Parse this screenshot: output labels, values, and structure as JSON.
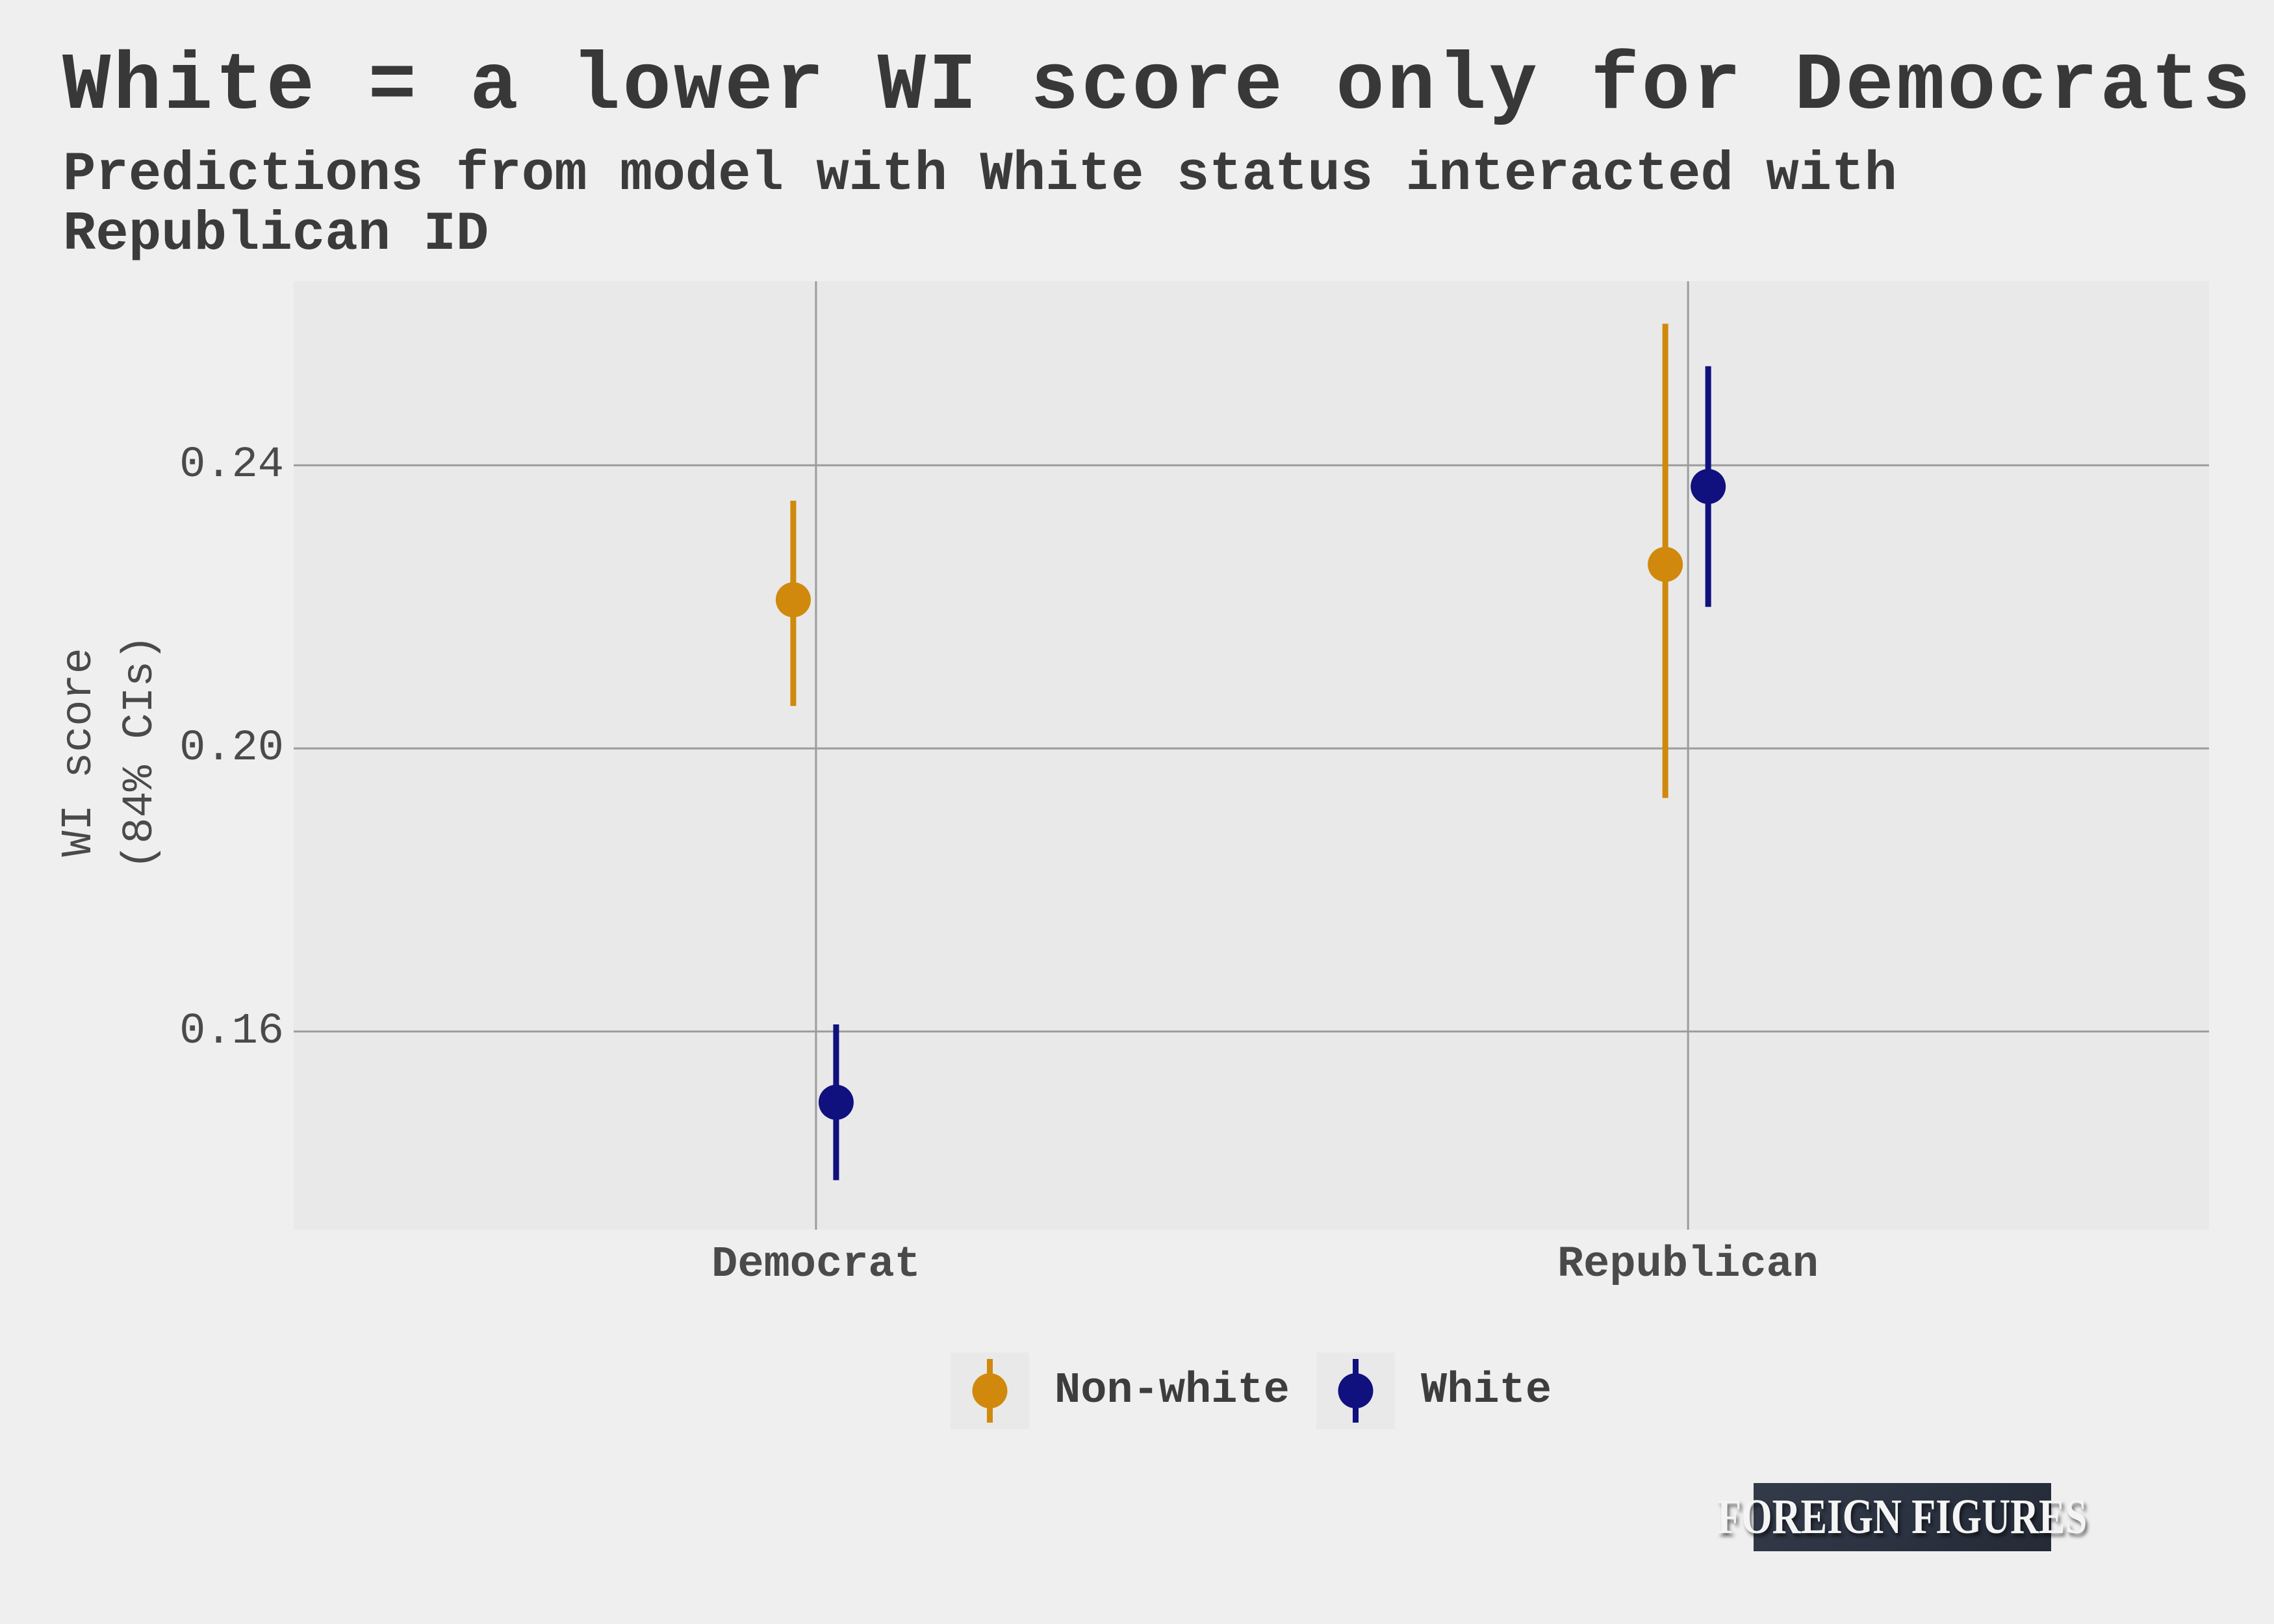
{
  "header": {
    "title": "White = a lower WI score only for Democrats",
    "subtitle_line1": "Predictions from model with White status interacted with",
    "subtitle_line2": "Republican ID"
  },
  "chart_data": {
    "type": "pointrange",
    "title": "White = a lower WI score only for Democrats",
    "subtitle": "Predictions from model with White status interacted with Republican ID",
    "subtitle_line1": "Predictions from model with White status interacted with",
    "subtitle_line2": "Republican ID",
    "xlabel": "",
    "ylabel": "WI score (84% CIs)",
    "ylabel_line1": "WI score",
    "ylabel_line2": "(84% CIs)",
    "ci_level": "84%",
    "categories": [
      "Democrat",
      "Republican"
    ],
    "y_ticks": [
      "0.24",
      "0.20",
      "0.16"
    ],
    "y_tick_values": [
      0.24,
      0.2,
      0.16
    ],
    "ylim": [
      0.132,
      0.266
    ],
    "grid": true,
    "legend_position": "bottom",
    "series": [
      {
        "name": "Non-white",
        "color": "#d0890c",
        "points": [
          {
            "category": "Democrat",
            "estimate": 0.221,
            "ci_low": 0.206,
            "ci_high": 0.235
          },
          {
            "category": "Republican",
            "estimate": 0.226,
            "ci_low": 0.193,
            "ci_high": 0.26
          }
        ]
      },
      {
        "name": "White",
        "color": "#10107e",
        "points": [
          {
            "category": "Democrat",
            "estimate": 0.15,
            "ci_low": 0.139,
            "ci_high": 0.161
          },
          {
            "category": "Republican",
            "estimate": 0.237,
            "ci_low": 0.22,
            "ci_high": 0.254
          }
        ]
      }
    ]
  },
  "branding": {
    "logo_text": "FOREIGN FIGURES"
  }
}
